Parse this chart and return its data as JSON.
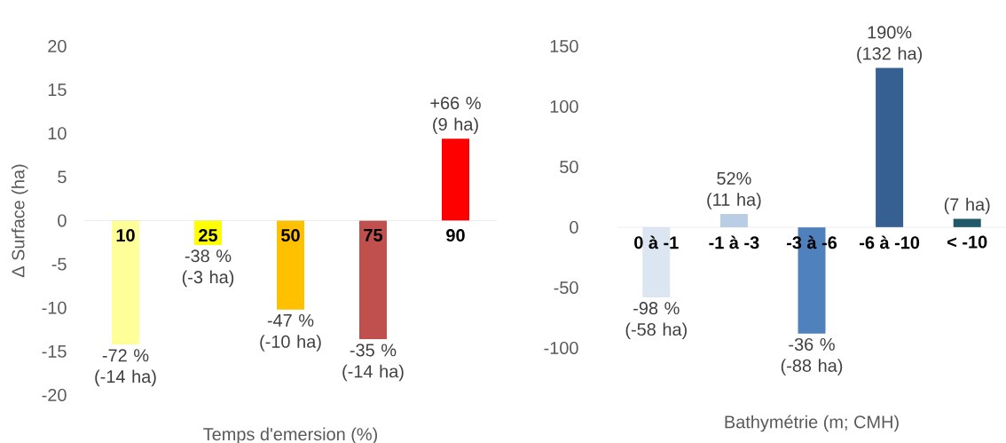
{
  "chart_data": [
    {
      "type": "bar",
      "categories": [
        "10",
        "25",
        "50",
        "75",
        "90"
      ],
      "values": [
        -14.2,
        -2.8,
        -10.2,
        -13.6,
        9.4
      ],
      "colors": [
        "#FFFF99",
        "#FFFF00",
        "#FFC000",
        "#C0504D",
        "#FF0000"
      ],
      "value_labels": [
        "-72 % (-14 ha)",
        "-38 % (-3 ha)",
        "-47 % (-10 ha)",
        "-35 % (-14 ha)",
        "+66 % (9 ha)"
      ],
      "ylim": [
        -20,
        20
      ],
      "yticks": [
        -20,
        -15,
        -10,
        -5,
        0,
        5,
        10,
        15,
        20
      ],
      "xlabel": "Temps d'emersion (%)",
      "ylabel": "Δ Surface (ha)"
    },
    {
      "type": "bar",
      "categories": [
        "0 à -1",
        "-1 à -3",
        "-3 à -6",
        "-6 à -10",
        "< -10"
      ],
      "values": [
        -58,
        11,
        -88,
        132,
        7
      ],
      "colors": [
        "#DCE6F2",
        "#B9CDE5",
        "#4F81BD",
        "#376092",
        "#215968"
      ],
      "value_labels": [
        "-98 % (-58 ha)",
        "52% (11 ha)",
        "-36 % (-88 ha)",
        "190% (132 ha)",
        "(7 ha)"
      ],
      "ylim": [
        -100,
        150
      ],
      "yticks": [
        -100,
        -50,
        0,
        50,
        100,
        150
      ],
      "xlabel": "Bathymétrie (m; CMH)"
    }
  ]
}
